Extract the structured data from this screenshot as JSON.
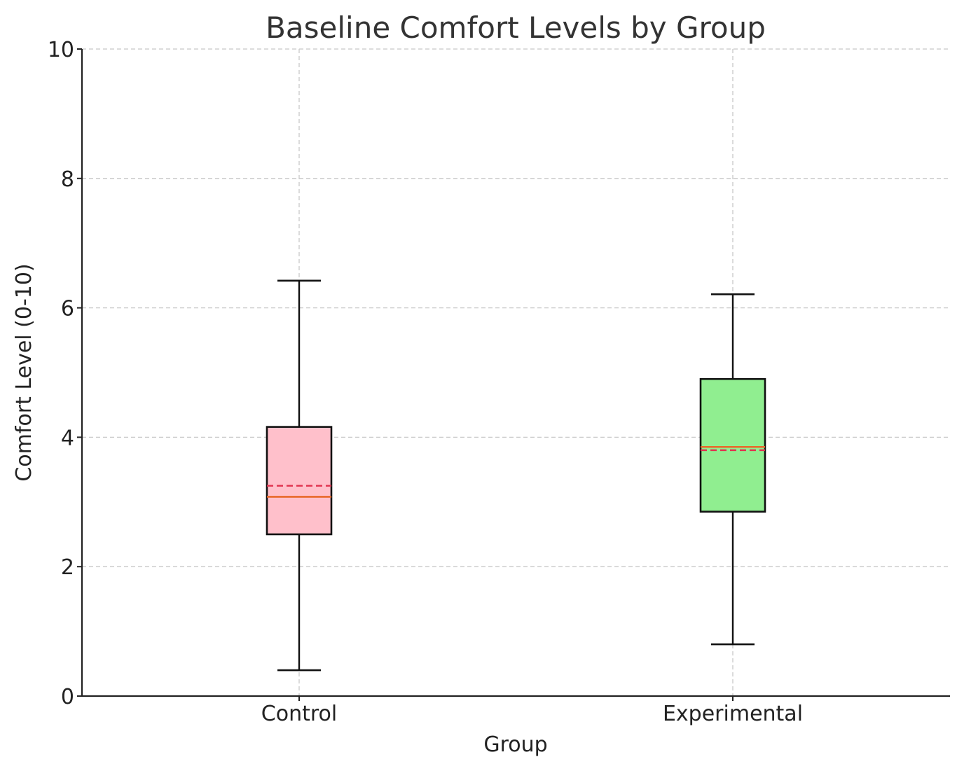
{
  "chart_data": {
    "type": "box",
    "title": "Baseline Comfort Levels by Group",
    "xlabel": "Group",
    "ylabel": "Comfort Level (0-10)",
    "ylim": [
      0,
      10
    ],
    "yticks": [
      0,
      2,
      4,
      6,
      8,
      10
    ],
    "grid": true,
    "categories": [
      "Control",
      "Experimental"
    ],
    "boxes": [
      {
        "category": "Control",
        "whisker_low": 0.4,
        "q1": 2.5,
        "median": 3.08,
        "mean": 3.25,
        "q3": 4.16,
        "whisker_high": 6.42,
        "color": "#ffc0cb"
      },
      {
        "category": "Experimental",
        "whisker_low": 0.8,
        "q1": 2.85,
        "median": 3.85,
        "mean": 3.8,
        "q3": 4.9,
        "whisker_high": 6.21,
        "color": "#90ee90"
      }
    ],
    "median_color": "#e8692a",
    "mean_color": "#e0334f"
  }
}
